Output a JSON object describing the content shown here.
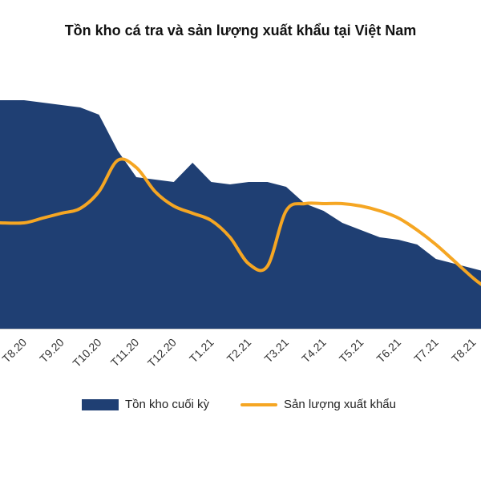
{
  "chart_data": {
    "type": "area",
    "title": "Tồn kho cá tra và sản lượng xuất khẩu tại Việt Nam",
    "categories": [
      "T8.20",
      "T9.20",
      "T10.20",
      "T11.20",
      "T12.20",
      "T1.21",
      "T2.21",
      "T3.21",
      "T4.21",
      "T5.21",
      "T6.21",
      "T7.21",
      "T8.21"
    ],
    "x": [
      0,
      0.5,
      1,
      1.5,
      2,
      2.5,
      3,
      3.5,
      4,
      4.5,
      5,
      5.5,
      6,
      6.5,
      7,
      7.5,
      8,
      8.5,
      9,
      9.5,
      10,
      10.5,
      11,
      11.5,
      12,
      12.25
    ],
    "series": [
      {
        "name": "Tồn kho cuối kỳ",
        "type": "area",
        "color": "#1f3f73",
        "values": [
          95,
          94,
          93,
          92,
          89,
          74,
          63,
          62,
          61,
          69,
          61,
          60,
          61,
          61,
          59,
          52,
          49,
          44,
          41,
          38,
          37,
          35,
          29,
          27,
          25,
          24
        ]
      },
      {
        "name": "Sản lượng xuất khẩu",
        "type": "line",
        "color": "#f5a623",
        "values": [
          44,
          46,
          48,
          50,
          57,
          70,
          67,
          57,
          51,
          48,
          45,
          38,
          27,
          26,
          49,
          52,
          52,
          52,
          51,
          49,
          46,
          41,
          35,
          28,
          21,
          18
        ]
      }
    ],
    "ylim": [
      0,
      100
    ],
    "grid": false,
    "legend_position": "bottom"
  }
}
